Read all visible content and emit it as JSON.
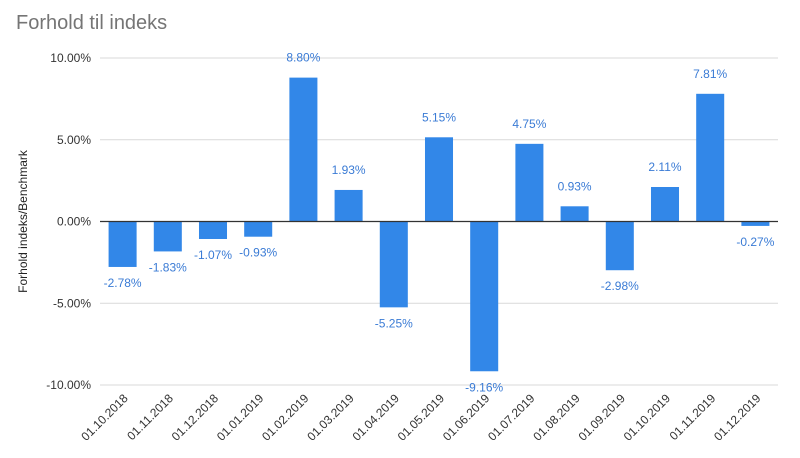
{
  "chart_data": {
    "type": "bar",
    "title": "Forhold til indeks",
    "xlabel": "",
    "ylabel": "Forhold indeks/Benchmark",
    "categories": [
      "01.10.2018",
      "01.11.2018",
      "01.12.2018",
      "01.01.2019",
      "01.02.2019",
      "01.03.2019",
      "01.04.2019",
      "01.05.2019",
      "01.06.2019",
      "01.07.2019",
      "01.08.2019",
      "01.09.2019",
      "01.10.2019",
      "01.11.2019",
      "01.12.2019"
    ],
    "values": [
      -2.78,
      -1.83,
      -1.07,
      -0.93,
      8.8,
      1.93,
      -5.25,
      5.15,
      -9.16,
      4.75,
      0.93,
      -2.98,
      2.11,
      7.81,
      -0.27
    ],
    "value_labels": [
      "-2.78%",
      "-1.83%",
      "-1.07%",
      "-0.93%",
      "8.80%",
      "1.93%",
      "-5.25%",
      "5.15%",
      "-9.16%",
      "4.75%",
      "0.93%",
      "-2.98%",
      "2.11%",
      "7.81%",
      "-0.27%"
    ],
    "ylim": [
      -10,
      10
    ],
    "yticks": [
      10,
      5,
      0,
      -5,
      -10
    ],
    "ytick_labels": [
      "10.00%",
      "5.00%",
      "0.00%",
      "-5.00%",
      "-10.00%"
    ],
    "grid": true,
    "legend": "none",
    "bar_color": "#3287e8",
    "label_color": "#3a7bd5",
    "grid_color": "#d9d9d9",
    "zero_line_color": "#333333"
  }
}
